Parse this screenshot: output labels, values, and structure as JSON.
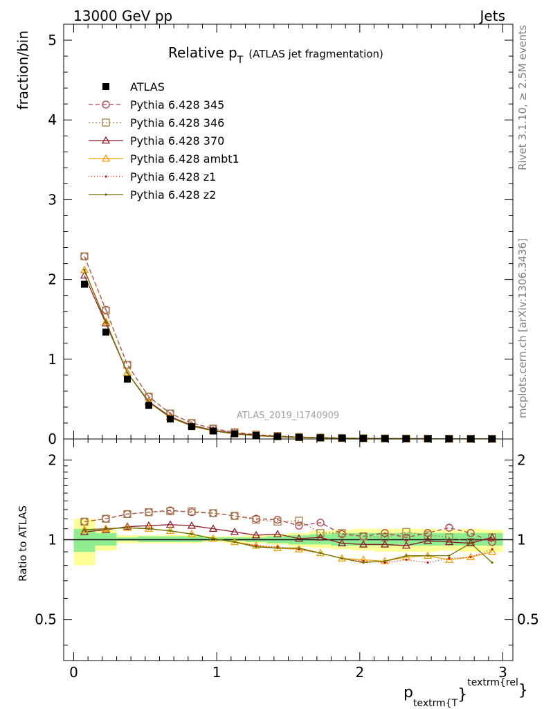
{
  "header": {
    "left": "13000 GeV pp",
    "right": "Jets",
    "title_main": "Relative p",
    "title_sub": "T",
    "title_extra": "(ATLAS jet fragmentation)",
    "watermark": "ATLAS_2019_I1740909",
    "side_top": "Rivet 3.1.10, ≥ 2.5M events",
    "side_bottom": "mcplots.cern.ch [arXiv:1306.3436]"
  },
  "axes": {
    "top_ylabel": "fraction/bin",
    "bottom_ylabel": "Ratio to ATLAS",
    "xlabel_main": "p",
    "xlabel_sub": "textrm{T",
    "xlabel_brace": "}",
    "xlabel_sup": "textrm{rel",
    "xlabel_close": "}",
    "top_yticks": [
      "0",
      "1",
      "2",
      "3",
      "4",
      "5"
    ],
    "bottom_yticks": [
      "0.5",
      "1",
      "2"
    ],
    "xticks": [
      "0",
      "1",
      "2",
      "3"
    ]
  },
  "chart_data": {
    "type": "scatter",
    "xlim": [
      -0.07,
      3.07
    ],
    "ylim_top": [
      0,
      5.2
    ],
    "ylim_ratio": [
      0.35,
      2.4
    ],
    "ratio_log_scale": true,
    "x": [
      0.075,
      0.225,
      0.375,
      0.525,
      0.675,
      0.825,
      0.975,
      1.125,
      1.275,
      1.425,
      1.575,
      1.725,
      1.875,
      2.025,
      2.175,
      2.325,
      2.475,
      2.625,
      2.775,
      2.925
    ],
    "data": {
      "name": "ATLAS",
      "values": [
        1.94,
        1.34,
        0.75,
        0.42,
        0.25,
        0.155,
        0.1,
        0.065,
        0.043,
        0.03,
        0.021,
        0.015,
        0.011,
        0.008,
        0.006,
        0.0045,
        0.0035,
        0.0027,
        0.002,
        0.0015
      ]
    },
    "series": [
      {
        "name": "Pythia 6.428 345",
        "color": "#b03a48",
        "marker": "circle",
        "dash": "6,4",
        "values": [
          2.29,
          1.62,
          0.93,
          0.53,
          0.32,
          0.2,
          0.13,
          0.085,
          0.055,
          0.037,
          0.024,
          0.018,
          0.013,
          0.0095,
          0.007,
          0.0052,
          0.004,
          0.003,
          0.0021,
          0.0015
        ],
        "ratio": [
          1.17,
          1.2,
          1.25,
          1.27,
          1.29,
          1.27,
          1.26,
          1.23,
          1.2,
          1.19,
          1.13,
          1.16,
          1.05,
          1.03,
          1.06,
          1.02,
          1.06,
          1.11,
          1.06,
          0.98
        ]
      },
      {
        "name": "Pythia 6.428 346",
        "color": "#a08048",
        "marker": "square",
        "dash": "2,3",
        "values": [
          2.29,
          1.61,
          0.93,
          0.53,
          0.32,
          0.2,
          0.13,
          0.084,
          0.055,
          0.037,
          0.024,
          0.017,
          0.012,
          0.0085,
          0.0065,
          0.0048,
          0.0037,
          0.0028,
          0.002,
          0.0015
        ],
        "ratio": [
          1.17,
          1.2,
          1.25,
          1.27,
          1.28,
          1.28,
          1.26,
          1.23,
          1.19,
          1.17,
          1.18,
          1.06,
          1.06,
          1.03,
          1.02,
          1.07,
          1.04,
          1.02,
          0.98,
          1.02
        ]
      },
      {
        "name": "Pythia 6.428 370",
        "color": "#8b1a2a",
        "marker": "triangle",
        "dash": "",
        "values": [
          2.05,
          1.45,
          0.83,
          0.47,
          0.28,
          0.172,
          0.11,
          0.071,
          0.046,
          0.032,
          0.021,
          0.016,
          0.0108,
          0.0078,
          0.0058,
          0.0043,
          0.0034,
          0.0026,
          0.0019,
          0.0015
        ],
        "ratio": [
          1.07,
          1.09,
          1.12,
          1.13,
          1.14,
          1.13,
          1.1,
          1.07,
          1.04,
          1.05,
          1.01,
          1.02,
          0.97,
          0.96,
          0.96,
          0.95,
          0.99,
          0.98,
          0.97,
          1.02
        ]
      },
      {
        "name": "Pythia 6.428 ambt1",
        "color": "#f0a000",
        "marker": "triangle",
        "dash": "",
        "values": [
          2.12,
          1.47,
          0.83,
          0.46,
          0.27,
          0.163,
          0.102,
          0.064,
          0.041,
          0.028,
          0.019,
          0.0135,
          0.0093,
          0.0067,
          0.005,
          0.0038,
          0.0029,
          0.0023,
          0.0017,
          0.0014
        ],
        "ratio": [
          1.09,
          1.1,
          1.11,
          1.1,
          1.08,
          1.05,
          1.01,
          0.98,
          0.95,
          0.93,
          0.92,
          0.89,
          0.85,
          0.84,
          0.83,
          0.86,
          0.87,
          0.84,
          0.86,
          0.9
        ]
      },
      {
        "name": "Pythia 6.428 z1",
        "color": "#cc1010",
        "marker": "dot",
        "dash": "1,3",
        "values": [
          2.12,
          1.47,
          0.83,
          0.46,
          0.27,
          0.163,
          0.101,
          0.064,
          0.041,
          0.028,
          0.019,
          0.0135,
          0.0093,
          0.0066,
          0.005,
          0.0038,
          0.0028,
          0.0023,
          0.0017,
          0.0014
        ],
        "ratio": [
          1.09,
          1.1,
          1.11,
          1.1,
          1.08,
          1.05,
          1.01,
          0.98,
          0.95,
          0.94,
          0.92,
          0.89,
          0.85,
          0.83,
          0.82,
          0.84,
          0.82,
          0.85,
          0.86,
          0.92
        ]
      },
      {
        "name": "Pythia 6.428 z2",
        "color": "#707000",
        "marker": "dot",
        "dash": "",
        "values": [
          2.12,
          1.47,
          0.83,
          0.46,
          0.27,
          0.163,
          0.101,
          0.064,
          0.041,
          0.028,
          0.019,
          0.0134,
          0.0093,
          0.0065,
          0.0049,
          0.0039,
          0.003,
          0.0023,
          0.0019,
          0.0012
        ],
        "ratio": [
          1.09,
          1.1,
          1.11,
          1.1,
          1.08,
          1.05,
          1.01,
          0.98,
          0.94,
          0.93,
          0.93,
          0.89,
          0.85,
          0.82,
          0.83,
          0.87,
          0.87,
          0.87,
          0.97,
          0.82
        ]
      }
    ],
    "uncertainty_bands": {
      "x_edges": [
        0.0,
        0.15,
        0.3,
        0.45,
        0.6,
        0.75,
        0.9,
        1.05,
        1.2,
        1.35,
        1.5,
        1.65,
        1.8,
        1.95,
        2.1,
        2.25,
        2.4,
        2.55,
        2.7,
        2.85,
        3.0
      ],
      "inner_lo": [
        0.9,
        0.95,
        0.99,
        0.98,
        0.98,
        0.98,
        0.99,
        0.99,
        0.98,
        0.97,
        0.96,
        0.96,
        0.95,
        0.95,
        0.95,
        0.95,
        0.95,
        0.95,
        0.95,
        0.95
      ],
      "inner_hi": [
        1.1,
        1.06,
        1.02,
        1.03,
        1.03,
        1.03,
        1.02,
        1.02,
        1.02,
        1.03,
        1.04,
        1.05,
        1.06,
        1.06,
        1.06,
        1.06,
        1.06,
        1.06,
        1.06,
        1.06
      ],
      "outer_lo": [
        0.8,
        0.91,
        0.97,
        0.97,
        0.97,
        0.97,
        0.98,
        0.97,
        0.97,
        0.96,
        0.94,
        0.93,
        0.92,
        0.91,
        0.9,
        0.9,
        0.9,
        0.91,
        0.9,
        0.9
      ],
      "outer_hi": [
        1.2,
        1.09,
        1.04,
        1.04,
        1.04,
        1.04,
        1.03,
        1.03,
        1.04,
        1.05,
        1.06,
        1.08,
        1.09,
        1.1,
        1.1,
        1.1,
        1.1,
        1.09,
        1.1,
        1.09
      ],
      "inner_color": "#90ee90",
      "outer_color": "#ffff99"
    }
  }
}
